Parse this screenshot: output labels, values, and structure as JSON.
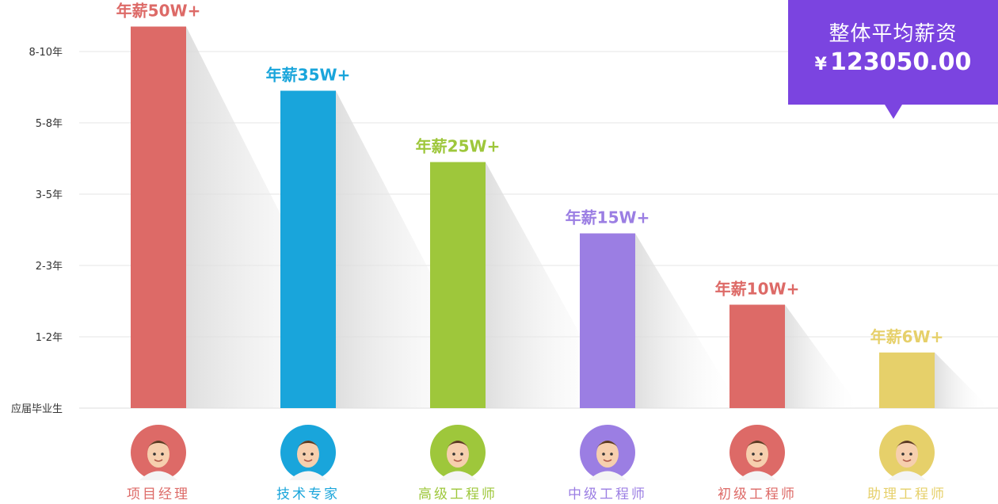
{
  "chart_data": {
    "type": "bar",
    "y_categories": [
      "应届毕业生",
      "1-2年",
      "3-5年",
      "5-8年",
      "8-10年"
    ],
    "y_ticks": [
      "应届毕业生",
      "1-2年",
      "2-3年",
      "3-5年",
      "5-8年",
      "8-10年"
    ],
    "grid": true,
    "categories": [
      "项目经理",
      "技术专家",
      "高级工程师",
      "中级工程师",
      "初级工程师",
      "助理工程师"
    ],
    "values": [
      5.35,
      4.45,
      3.45,
      2.45,
      1.45,
      0.78
    ],
    "value_labels": [
      "年薪50W+",
      "年薪35W+",
      "年薪25W+",
      "年薪15W+",
      "年薪10W+",
      "年薪6W+"
    ],
    "colors": [
      "#dd6a67",
      "#19a5db",
      "#9ec73b",
      "#9b7ee3",
      "#dd6a67",
      "#e6d06a"
    ],
    "avatar_icons": [
      "manager-avatar-icon",
      "expert-avatar-icon",
      "senior-engineer-avatar-icon",
      "mid-engineer-avatar-icon",
      "junior-engineer-avatar-icon",
      "assistant-engineer-avatar-icon"
    ]
  },
  "summary": {
    "title": "整体平均薪资",
    "currency": "¥",
    "value": "123050.00"
  }
}
